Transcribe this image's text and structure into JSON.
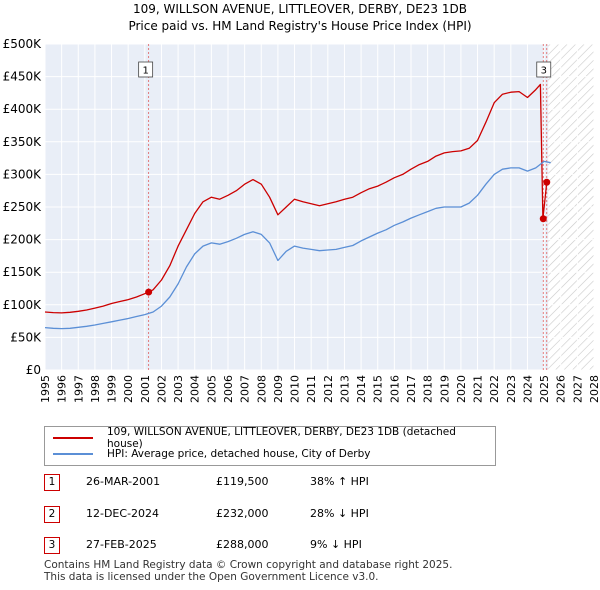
{
  "title": {
    "line1": "109, WILLSON AVENUE, LITTLEOVER, DERBY, DE23 1DB",
    "line2": "Price paid vs. HM Land Registry's House Price Index (HPI)"
  },
  "colors": {
    "property": "#cc0000",
    "hpi": "#5b8fd6",
    "grid": "#ffffff",
    "plot_bg": "#e9eef7",
    "marker": "#cc0000"
  },
  "chart_data": {
    "type": "line",
    "x_label": "",
    "y_label": "",
    "x_range": [
      1995,
      2028
    ],
    "y_range": [
      0,
      500000
    ],
    "x_ticks": [
      "1995",
      "1996",
      "1997",
      "1998",
      "1999",
      "2000",
      "2001",
      "2002",
      "2003",
      "2004",
      "2005",
      "2006",
      "2007",
      "2008",
      "2009",
      "2010",
      "2011",
      "2012",
      "2013",
      "2014",
      "2015",
      "2016",
      "2017",
      "2018",
      "2019",
      "2020",
      "2021",
      "2022",
      "2023",
      "2024",
      "2025",
      "2026",
      "2027",
      "2028"
    ],
    "y_ticks": [
      {
        "value": 0,
        "label": "£0"
      },
      {
        "value": 50000,
        "label": "£50K"
      },
      {
        "value": 100000,
        "label": "£100K"
      },
      {
        "value": 150000,
        "label": "£150K"
      },
      {
        "value": 200000,
        "label": "£200K"
      },
      {
        "value": 250000,
        "label": "£250K"
      },
      {
        "value": 300000,
        "label": "£300K"
      },
      {
        "value": 350000,
        "label": "£350K"
      },
      {
        "value": 400000,
        "label": "£400K"
      },
      {
        "value": 450000,
        "label": "£450K"
      },
      {
        "value": 500000,
        "label": "£500K"
      }
    ],
    "hatch_from": 2025.25,
    "series": [
      {
        "name": "109, WILLSON AVENUE, LITTLEOVER, DERBY, DE23 1DB (detached house)",
        "color": "#cc0000",
        "points": [
          [
            1995.0,
            89000
          ],
          [
            1995.5,
            88000
          ],
          [
            1996.0,
            87500
          ],
          [
            1996.5,
            88500
          ],
          [
            1997.0,
            90000
          ],
          [
            1997.5,
            92000
          ],
          [
            1998.0,
            95000
          ],
          [
            1998.5,
            98000
          ],
          [
            1999.0,
            102000
          ],
          [
            1999.5,
            105000
          ],
          [
            2000.0,
            108000
          ],
          [
            2000.5,
            112000
          ],
          [
            2001.0,
            117000
          ],
          [
            2001.23,
            119500
          ],
          [
            2001.5,
            123000
          ],
          [
            2002.0,
            138000
          ],
          [
            2002.5,
            160000
          ],
          [
            2003.0,
            190000
          ],
          [
            2003.5,
            215000
          ],
          [
            2004.0,
            240000
          ],
          [
            2004.5,
            258000
          ],
          [
            2005.0,
            265000
          ],
          [
            2005.5,
            262000
          ],
          [
            2006.0,
            268000
          ],
          [
            2006.5,
            275000
          ],
          [
            2007.0,
            285000
          ],
          [
            2007.5,
            292000
          ],
          [
            2008.0,
            285000
          ],
          [
            2008.5,
            265000
          ],
          [
            2009.0,
            238000
          ],
          [
            2009.5,
            250000
          ],
          [
            2010.0,
            262000
          ],
          [
            2010.5,
            258000
          ],
          [
            2011.0,
            255000
          ],
          [
            2011.5,
            252000
          ],
          [
            2012.0,
            255000
          ],
          [
            2012.5,
            258000
          ],
          [
            2013.0,
            262000
          ],
          [
            2013.5,
            265000
          ],
          [
            2014.0,
            272000
          ],
          [
            2014.5,
            278000
          ],
          [
            2015.0,
            282000
          ],
          [
            2015.5,
            288000
          ],
          [
            2016.0,
            295000
          ],
          [
            2016.5,
            300000
          ],
          [
            2017.0,
            308000
          ],
          [
            2017.5,
            315000
          ],
          [
            2018.0,
            320000
          ],
          [
            2018.5,
            328000
          ],
          [
            2019.0,
            333000
          ],
          [
            2019.5,
            335000
          ],
          [
            2020.0,
            336000
          ],
          [
            2020.5,
            340000
          ],
          [
            2021.0,
            352000
          ],
          [
            2021.5,
            380000
          ],
          [
            2022.0,
            410000
          ],
          [
            2022.5,
            423000
          ],
          [
            2023.0,
            426000
          ],
          [
            2023.5,
            427000
          ],
          [
            2024.0,
            418000
          ],
          [
            2024.5,
            430000
          ],
          [
            2024.78,
            438000
          ],
          [
            2024.93,
            232000
          ],
          [
            2025.16,
            288000
          ]
        ]
      },
      {
        "name": "HPI: Average price, detached house, City of Derby",
        "color": "#5b8fd6",
        "points": [
          [
            1995.0,
            65000
          ],
          [
            1995.5,
            64000
          ],
          [
            1996.0,
            63500
          ],
          [
            1996.5,
            64000
          ],
          [
            1997.0,
            65500
          ],
          [
            1997.5,
            67000
          ],
          [
            1998.0,
            69000
          ],
          [
            1998.5,
            71500
          ],
          [
            1999.0,
            74000
          ],
          [
            1999.5,
            76500
          ],
          [
            2000.0,
            79000
          ],
          [
            2000.5,
            82000
          ],
          [
            2001.0,
            85000
          ],
          [
            2001.5,
            89000
          ],
          [
            2002.0,
            98000
          ],
          [
            2002.5,
            112000
          ],
          [
            2003.0,
            132000
          ],
          [
            2003.5,
            158000
          ],
          [
            2004.0,
            178000
          ],
          [
            2004.5,
            190000
          ],
          [
            2005.0,
            195000
          ],
          [
            2005.5,
            193000
          ],
          [
            2006.0,
            197000
          ],
          [
            2006.5,
            202000
          ],
          [
            2007.0,
            208000
          ],
          [
            2007.5,
            212000
          ],
          [
            2008.0,
            208000
          ],
          [
            2008.5,
            195000
          ],
          [
            2009.0,
            168000
          ],
          [
            2009.5,
            182000
          ],
          [
            2010.0,
            190000
          ],
          [
            2010.5,
            187000
          ],
          [
            2011.0,
            185000
          ],
          [
            2011.5,
            183000
          ],
          [
            2012.0,
            184000
          ],
          [
            2012.5,
            185000
          ],
          [
            2013.0,
            188000
          ],
          [
            2013.5,
            191000
          ],
          [
            2014.0,
            198000
          ],
          [
            2014.5,
            204000
          ],
          [
            2015.0,
            210000
          ],
          [
            2015.5,
            215000
          ],
          [
            2016.0,
            222000
          ],
          [
            2016.5,
            227000
          ],
          [
            2017.0,
            233000
          ],
          [
            2017.5,
            238000
          ],
          [
            2018.0,
            243000
          ],
          [
            2018.5,
            248000
          ],
          [
            2019.0,
            250000
          ],
          [
            2019.5,
            250000
          ],
          [
            2020.0,
            250000
          ],
          [
            2020.5,
            256000
          ],
          [
            2021.0,
            268000
          ],
          [
            2021.5,
            285000
          ],
          [
            2022.0,
            300000
          ],
          [
            2022.5,
            308000
          ],
          [
            2023.0,
            310000
          ],
          [
            2023.5,
            310000
          ],
          [
            2024.0,
            305000
          ],
          [
            2024.5,
            310000
          ],
          [
            2025.0,
            320000
          ],
          [
            2025.4,
            318000
          ]
        ]
      }
    ],
    "sales": [
      {
        "label": "1",
        "x": 2001.23,
        "price": 119500
      },
      {
        "label": "2",
        "x": 2024.95,
        "price": 232000
      },
      {
        "label": "3",
        "x": 2025.16,
        "price": 288000
      }
    ]
  },
  "legend": {
    "property_label": "109, WILLSON AVENUE, LITTLEOVER, DERBY, DE23 1DB (detached house)",
    "hpi_label": "HPI: Average price, detached house, City of Derby"
  },
  "transactions": [
    {
      "label": "1",
      "date": "26-MAR-2001",
      "price": "£119,500",
      "hpi": "38% ↑ HPI"
    },
    {
      "label": "2",
      "date": "12-DEC-2024",
      "price": "£232,000",
      "hpi": "28% ↓ HPI"
    },
    {
      "label": "3",
      "date": "27-FEB-2025",
      "price": "£288,000",
      "hpi": "9% ↓ HPI"
    }
  ],
  "footer": {
    "line1": "Contains HM Land Registry data © Crown copyright and database right 2025.",
    "line2": "This data is licensed under the Open Government Licence v3.0."
  }
}
